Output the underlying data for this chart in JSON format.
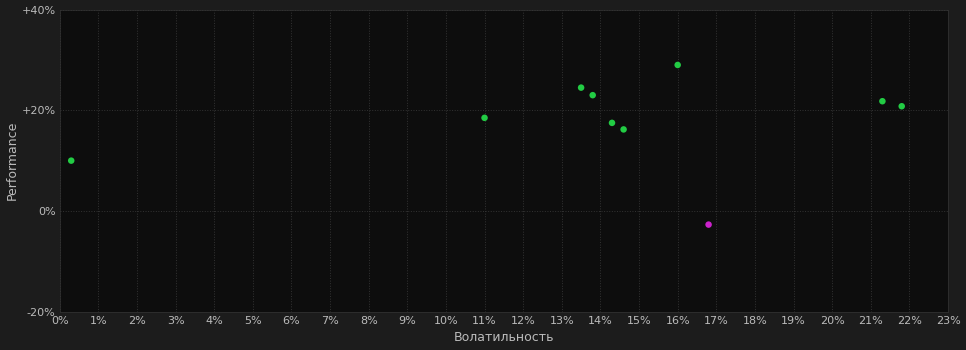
{
  "background_color": "#1c1c1c",
  "plot_bg_color": "#0d0d0d",
  "grid_color": "#333333",
  "text_color": "#bbbbbb",
  "xlabel": "Волатильность",
  "ylabel": "Performance",
  "xlim": [
    0.0,
    0.23
  ],
  "ylim": [
    -0.2,
    0.4
  ],
  "ytick_values": [
    -0.2,
    0.0,
    0.2,
    0.4
  ],
  "ytick_labels": [
    "-20%",
    "0%",
    "+20%",
    "+40%"
  ],
  "points_green": [
    [
      0.003,
      0.1
    ],
    [
      0.11,
      0.185
    ],
    [
      0.135,
      0.245
    ],
    [
      0.138,
      0.23
    ],
    [
      0.143,
      0.175
    ],
    [
      0.146,
      0.162
    ],
    [
      0.16,
      0.29
    ],
    [
      0.213,
      0.218
    ],
    [
      0.218,
      0.208
    ]
  ],
  "points_magenta": [
    [
      0.168,
      -0.027
    ]
  ],
  "green_color": "#22cc44",
  "magenta_color": "#cc22cc",
  "marker_size": 22,
  "axis_fontsize": 9,
  "tick_fontsize": 8
}
